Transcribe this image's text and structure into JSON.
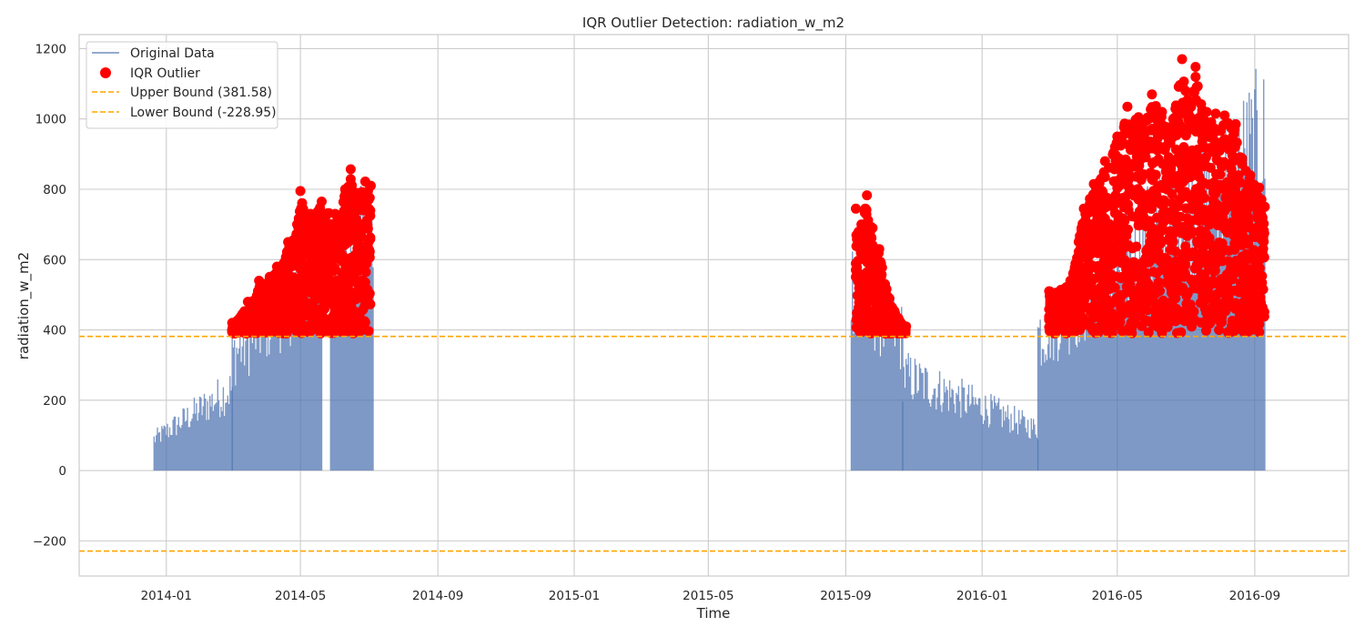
{
  "chart_data": {
    "type": "line",
    "title": "IQR Outlier Detection: radiation_w_m2",
    "xlabel": "Time",
    "ylabel": "radiation_w_m2",
    "xlim": [
      "2013-10-15",
      "2016-11-24"
    ],
    "ylim": [
      -300,
      1240
    ],
    "x_ticks": [
      "2014-01",
      "2014-05",
      "2014-09",
      "2015-01",
      "2015-05",
      "2015-09",
      "2016-01",
      "2016-05",
      "2016-09"
    ],
    "y_ticks": [
      -200,
      0,
      200,
      400,
      600,
      800,
      1000,
      1200
    ],
    "grid": true,
    "legend_position": "top-left",
    "colors": {
      "original": "#4c72b0",
      "outlier": "#ff0000",
      "bound": "#ffa500",
      "grid": "#cccccc"
    },
    "series": [
      {
        "name": "Original Data",
        "kind": "line",
        "segments": [
          {
            "start": "2013-12-21",
            "end": "2014-03-01",
            "peak_start": 115,
            "peak_end": 300
          },
          {
            "start": "2014-03-01",
            "end": "2014-05-20",
            "peak_start": 420,
            "peak_end": 760
          },
          {
            "start": "2014-05-28",
            "end": "2014-07-05",
            "peak_start": 720,
            "peak_end": 860
          },
          {
            "start": "2015-09-06",
            "end": "2015-10-22",
            "peak_start": 700,
            "peak_end": 480
          },
          {
            "start": "2015-10-22",
            "end": "2016-02-20",
            "peak_start": 350,
            "peak_end": 150
          },
          {
            "start": "2016-02-20",
            "end": "2016-09-10",
            "peak_start": 500,
            "peak_end": 1170
          }
        ]
      },
      {
        "name": "IQR Outlier",
        "kind": "scatter",
        "points": [
          [
            "2014-03-01",
            420
          ],
          [
            "2014-03-15",
            480
          ],
          [
            "2014-03-25",
            540
          ],
          [
            "2014-04-10",
            580
          ],
          [
            "2014-04-20",
            650
          ],
          [
            "2014-04-28",
            700
          ],
          [
            "2014-05-01",
            795
          ],
          [
            "2014-05-10",
            730
          ],
          [
            "2014-05-20",
            765
          ],
          [
            "2014-06-01",
            730
          ],
          [
            "2014-06-10",
            800
          ],
          [
            "2014-06-15",
            857
          ],
          [
            "2014-06-20",
            790
          ],
          [
            "2014-06-28",
            822
          ],
          [
            "2014-07-03",
            810
          ],
          [
            "2015-09-10",
            745
          ],
          [
            "2015-09-15",
            700
          ],
          [
            "2015-09-20",
            783
          ],
          [
            "2015-09-25",
            690
          ],
          [
            "2015-10-01",
            630
          ],
          [
            "2015-10-10",
            490
          ],
          [
            "2015-10-25",
            410
          ],
          [
            "2016-03-01",
            510
          ],
          [
            "2016-03-20",
            540
          ],
          [
            "2016-04-01",
            745
          ],
          [
            "2016-04-10",
            815
          ],
          [
            "2016-04-20",
            880
          ],
          [
            "2016-05-01",
            950
          ],
          [
            "2016-05-10",
            1035
          ],
          [
            "2016-05-20",
            1005
          ],
          [
            "2016-06-01",
            1070
          ],
          [
            "2016-06-10",
            1020
          ],
          [
            "2016-06-20",
            1000
          ],
          [
            "2016-06-28",
            1170
          ],
          [
            "2016-07-01",
            1080
          ],
          [
            "2016-07-10",
            1148
          ],
          [
            "2016-07-12",
            1093
          ],
          [
            "2016-07-20",
            1020
          ],
          [
            "2016-07-28",
            1015
          ],
          [
            "2016-08-05",
            1010
          ],
          [
            "2016-08-15",
            985
          ],
          [
            "2016-08-28",
            840
          ],
          [
            "2016-09-05",
            805
          ],
          [
            "2016-09-10",
            750
          ]
        ]
      },
      {
        "name": "Upper Bound (381.58)",
        "kind": "hline",
        "y": 381.58
      },
      {
        "name": "Lower Bound (-228.95)",
        "kind": "hline",
        "y": -228.95
      }
    ]
  }
}
